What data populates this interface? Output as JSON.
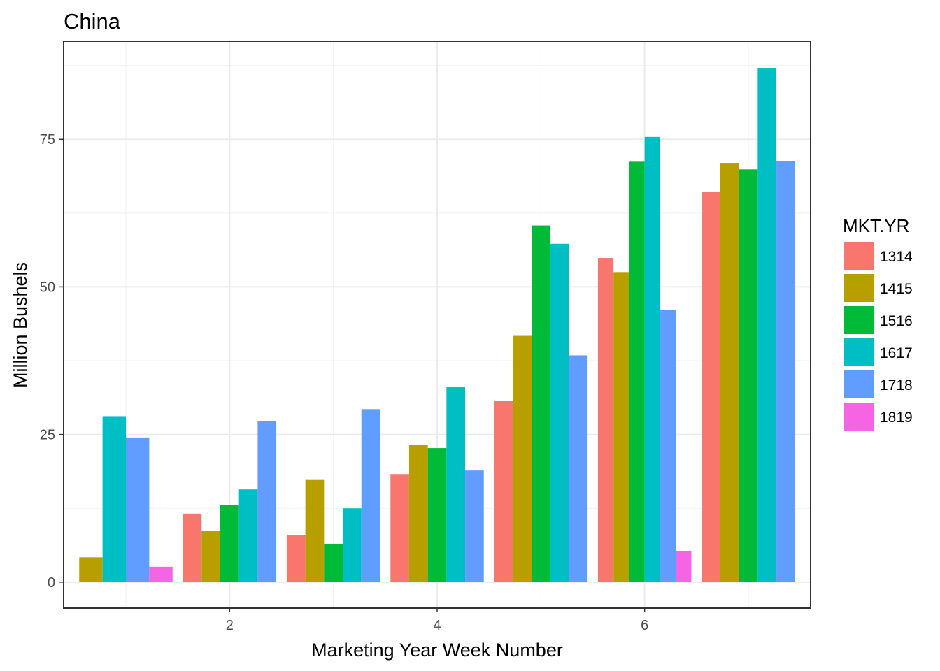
{
  "chart_data": {
    "type": "bar",
    "title": "China",
    "xlabel": "Marketing Year Week Number",
    "ylabel": "Million Bushels",
    "xlim": [
      0.4,
      7.6
    ],
    "ylim": [
      -4.4,
      91.6
    ],
    "x_ticks": [
      2,
      4,
      6
    ],
    "y_ticks": [
      0,
      25,
      50,
      75
    ],
    "grid": true,
    "legend_position": "right",
    "legend_title": "MKT.YR",
    "categories": [
      1,
      2,
      3,
      4,
      5,
      6,
      7
    ],
    "series": [
      {
        "name": "1314",
        "color": "#F8766D",
        "values": [
          null,
          11.6,
          8.0,
          18.3,
          30.7,
          54.9,
          66.1
        ]
      },
      {
        "name": "1415",
        "color": "#B79F00",
        "values": [
          4.2,
          8.7,
          17.3,
          23.3,
          41.7,
          52.5,
          71.0
        ]
      },
      {
        "name": "1516",
        "color": "#00BA38",
        "values": [
          null,
          13.0,
          6.5,
          22.7,
          60.4,
          71.2,
          69.9
        ]
      },
      {
        "name": "1617",
        "color": "#00BFC4",
        "values": [
          28.1,
          15.7,
          12.5,
          33.0,
          57.3,
          75.4,
          87.0
        ]
      },
      {
        "name": "1718",
        "color": "#619CFF",
        "values": [
          24.5,
          27.3,
          29.3,
          18.9,
          38.4,
          46.1,
          71.3
        ]
      },
      {
        "name": "1819",
        "color": "#F564E3",
        "values": [
          2.6,
          null,
          null,
          null,
          null,
          5.3,
          null
        ]
      }
    ]
  }
}
